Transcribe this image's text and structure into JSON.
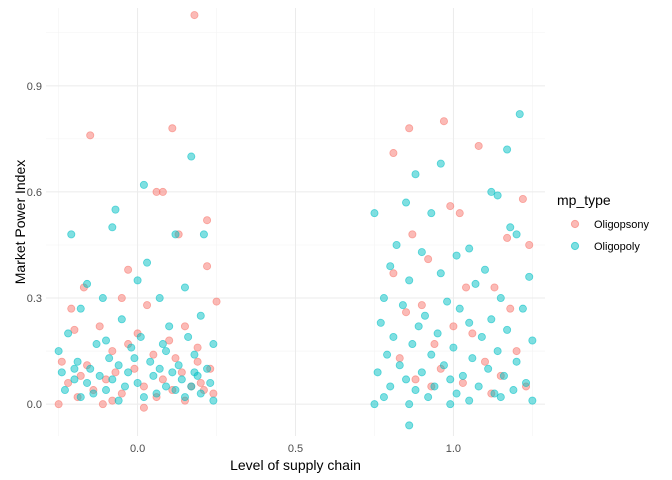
{
  "chart_data": {
    "type": "scatter",
    "xlabel": "Level of supply chain",
    "ylabel": "Market Power Index",
    "xlim": [
      -0.29,
      1.29
    ],
    "ylim": [
      -0.09,
      1.12
    ],
    "x_ticks": [
      0.0,
      0.5,
      1.0
    ],
    "x_tick_labels": [
      "0.0",
      "0.5",
      "1.0"
    ],
    "y_ticks": [
      0.0,
      0.3,
      0.6,
      0.9
    ],
    "y_tick_labels": [
      "0.0",
      "0.3",
      "0.6",
      "0.9"
    ],
    "grid": true,
    "point_alpha": 0.5,
    "legend": {
      "title": "mp_type",
      "position": "right",
      "entries": [
        {
          "label": "Oligopsony",
          "color": "#F8766D"
        },
        {
          "label": "Oligopoly",
          "color": "#00BFC4"
        }
      ]
    },
    "series": [
      {
        "name": "Oligopsony",
        "color": "#F8766D",
        "points": [
          [
            0.18,
            1.1
          ],
          [
            -0.15,
            0.76
          ],
          [
            0.11,
            0.78
          ],
          [
            0.06,
            0.6
          ],
          [
            0.08,
            0.6
          ],
          [
            0.22,
            0.52
          ],
          [
            0.13,
            0.48
          ],
          [
            0.22,
            0.39
          ],
          [
            -0.03,
            0.38
          ],
          [
            0.25,
            0.29
          ],
          [
            -0.17,
            0.33
          ],
          [
            -0.21,
            0.27
          ],
          [
            -0.05,
            0.3
          ],
          [
            0.03,
            0.28
          ],
          [
            0.15,
            0.22
          ],
          [
            -0.12,
            0.22
          ],
          [
            -0.2,
            0.21
          ],
          [
            0.0,
            0.2
          ],
          [
            0.1,
            0.18
          ],
          [
            0.19,
            0.16
          ],
          [
            -0.08,
            0.15
          ],
          [
            0.05,
            0.14
          ],
          [
            -0.24,
            0.12
          ],
          [
            0.23,
            0.1
          ],
          [
            -0.01,
            0.1
          ],
          [
            0.14,
            0.09
          ],
          [
            -0.18,
            0.08
          ],
          [
            0.08,
            0.07
          ],
          [
            -0.1,
            0.07
          ],
          [
            0.2,
            0.06
          ],
          [
            -0.22,
            0.06
          ],
          [
            0.02,
            0.05
          ],
          [
            0.17,
            0.05
          ],
          [
            -0.14,
            0.04
          ],
          [
            0.11,
            0.04
          ],
          [
            -0.05,
            0.03
          ],
          [
            0.24,
            0.03
          ],
          [
            -0.19,
            0.02
          ],
          [
            0.06,
            0.02
          ],
          [
            -0.08,
            0.01
          ],
          [
            0.15,
            0.01
          ],
          [
            -0.25,
            0.0
          ],
          [
            0.02,
            -0.01
          ],
          [
            -0.11,
            0.0
          ],
          [
            0.21,
            0.04
          ],
          [
            -0.16,
            0.11
          ],
          [
            0.12,
            0.13
          ],
          [
            -0.03,
            0.17
          ],
          [
            0.19,
            0.12
          ],
          [
            -0.07,
            0.09
          ],
          [
            0.97,
            0.8
          ],
          [
            0.86,
            0.78
          ],
          [
            1.08,
            0.73
          ],
          [
            0.81,
            0.71
          ],
          [
            0.99,
            0.56
          ],
          [
            1.02,
            0.54
          ],
          [
            0.87,
            0.48
          ],
          [
            1.17,
            0.47
          ],
          [
            1.24,
            0.45
          ],
          [
            0.92,
            0.41
          ],
          [
            1.22,
            0.58
          ],
          [
            0.81,
            0.37
          ],
          [
            1.04,
            0.33
          ],
          [
            1.13,
            0.33
          ],
          [
            0.9,
            0.28
          ],
          [
            1.18,
            0.27
          ],
          [
            0.85,
            0.26
          ],
          [
            1.0,
            0.22
          ],
          [
            1.06,
            0.2
          ],
          [
            0.94,
            0.17
          ],
          [
            1.2,
            0.15
          ],
          [
            0.83,
            0.13
          ],
          [
            1.1,
            0.12
          ],
          [
            0.96,
            0.1
          ],
          [
            1.15,
            0.08
          ],
          [
            0.88,
            0.07
          ],
          [
            1.03,
            0.06
          ],
          [
            1.23,
            0.05
          ],
          [
            0.93,
            0.05
          ],
          [
            1.12,
            0.03
          ]
        ]
      },
      {
        "name": "Oligopoly",
        "color": "#00BFC4",
        "points": [
          [
            0.17,
            0.7
          ],
          [
            0.02,
            0.62
          ],
          [
            -0.07,
            0.55
          ],
          [
            -0.08,
            0.5
          ],
          [
            -0.21,
            0.48
          ],
          [
            0.12,
            0.48
          ],
          [
            0.21,
            0.48
          ],
          [
            0.03,
            0.4
          ],
          [
            0.0,
            0.35
          ],
          [
            -0.16,
            0.34
          ],
          [
            0.15,
            0.33
          ],
          [
            -0.11,
            0.3
          ],
          [
            0.07,
            0.3
          ],
          [
            -0.18,
            0.27
          ],
          [
            0.2,
            0.25
          ],
          [
            -0.05,
            0.24
          ],
          [
            0.1,
            0.22
          ],
          [
            -0.22,
            0.2
          ],
          [
            0.01,
            0.19
          ],
          [
            0.16,
            0.19
          ],
          [
            -0.13,
            0.17
          ],
          [
            0.24,
            0.17
          ],
          [
            -0.02,
            0.16
          ],
          [
            0.09,
            0.15
          ],
          [
            -0.25,
            0.15
          ],
          [
            0.18,
            0.14
          ],
          [
            -0.09,
            0.13
          ],
          [
            0.04,
            0.12
          ],
          [
            -0.19,
            0.12
          ],
          [
            0.13,
            0.11
          ],
          [
            -0.06,
            0.11
          ],
          [
            0.22,
            0.1
          ],
          [
            -0.15,
            0.1
          ],
          [
            0.07,
            0.1
          ],
          [
            -0.24,
            0.09
          ],
          [
            0.11,
            0.09
          ],
          [
            -0.03,
            0.09
          ],
          [
            0.19,
            0.08
          ],
          [
            -0.12,
            0.08
          ],
          [
            0.05,
            0.08
          ],
          [
            -0.2,
            0.07
          ],
          [
            0.14,
            0.07
          ],
          [
            -0.08,
            0.07
          ],
          [
            0.23,
            0.06
          ],
          [
            0.0,
            0.06
          ],
          [
            -0.16,
            0.06
          ],
          [
            0.09,
            0.05
          ],
          [
            -0.04,
            0.05
          ],
          [
            0.17,
            0.05
          ],
          [
            -0.23,
            0.04
          ],
          [
            0.12,
            0.04
          ],
          [
            -0.1,
            0.04
          ],
          [
            0.06,
            0.03
          ],
          [
            0.2,
            0.03
          ],
          [
            -0.14,
            0.03
          ],
          [
            0.02,
            0.02
          ],
          [
            -0.18,
            0.02
          ],
          [
            0.15,
            0.02
          ],
          [
            -0.06,
            0.01
          ],
          [
            0.24,
            0.01
          ],
          [
            -0.01,
            0.13
          ],
          [
            0.08,
            0.17
          ],
          [
            -0.2,
            0.1
          ],
          [
            0.18,
            0.09
          ],
          [
            -0.1,
            0.18
          ],
          [
            1.21,
            0.82
          ],
          [
            1.17,
            0.72
          ],
          [
            0.96,
            0.68
          ],
          [
            0.88,
            0.65
          ],
          [
            1.12,
            0.6
          ],
          [
            1.14,
            0.59
          ],
          [
            0.75,
            0.54
          ],
          [
            0.85,
            0.57
          ],
          [
            0.93,
            0.54
          ],
          [
            1.18,
            0.5
          ],
          [
            1.2,
            0.48
          ],
          [
            0.82,
            0.45
          ],
          [
            1.05,
            0.44
          ],
          [
            0.9,
            0.43
          ],
          [
            1.01,
            0.42
          ],
          [
            0.8,
            0.39
          ],
          [
            1.1,
            0.38
          ],
          [
            0.96,
            0.37
          ],
          [
            1.24,
            0.36
          ],
          [
            0.86,
            0.35
          ],
          [
            1.07,
            0.34
          ],
          [
            0.78,
            0.3
          ],
          [
            1.15,
            0.3
          ],
          [
            0.98,
            0.29
          ],
          [
            0.84,
            0.28
          ],
          [
            1.02,
            0.27
          ],
          [
            1.22,
            0.27
          ],
          [
            0.91,
            0.25
          ],
          [
            1.12,
            0.24
          ],
          [
            0.77,
            0.23
          ],
          [
            1.05,
            0.23
          ],
          [
            0.89,
            0.22
          ],
          [
            1.17,
            0.21
          ],
          [
            0.95,
            0.2
          ],
          [
            0.81,
            0.19
          ],
          [
            1.09,
            0.19
          ],
          [
            1.25,
            0.18
          ],
          [
            0.87,
            0.17
          ],
          [
            1.0,
            0.16
          ],
          [
            1.14,
            0.15
          ],
          [
            0.79,
            0.14
          ],
          [
            0.93,
            0.14
          ],
          [
            1.06,
            0.13
          ],
          [
            1.2,
            0.12
          ],
          [
            0.83,
            0.11
          ],
          [
            0.97,
            0.11
          ],
          [
            1.11,
            0.1
          ],
          [
            0.76,
            0.09
          ],
          [
            0.9,
            0.09
          ],
          [
            1.03,
            0.08
          ],
          [
            1.16,
            0.08
          ],
          [
            0.85,
            0.07
          ],
          [
            0.99,
            0.07
          ],
          [
            1.23,
            0.06
          ],
          [
            0.8,
            0.05
          ],
          [
            0.94,
            0.05
          ],
          [
            1.08,
            0.05
          ],
          [
            1.19,
            0.04
          ],
          [
            0.88,
            0.04
          ],
          [
            1.01,
            0.03
          ],
          [
            1.13,
            0.03
          ],
          [
            0.78,
            0.02
          ],
          [
            0.92,
            0.02
          ],
          [
            1.05,
            0.01
          ],
          [
            1.25,
            0.01
          ],
          [
            0.86,
            0.0
          ],
          [
            0.99,
            0.0
          ],
          [
            1.15,
            0.02
          ],
          [
            0.75,
            0.0
          ],
          [
            0.86,
            -0.06
          ]
        ]
      }
    ]
  }
}
